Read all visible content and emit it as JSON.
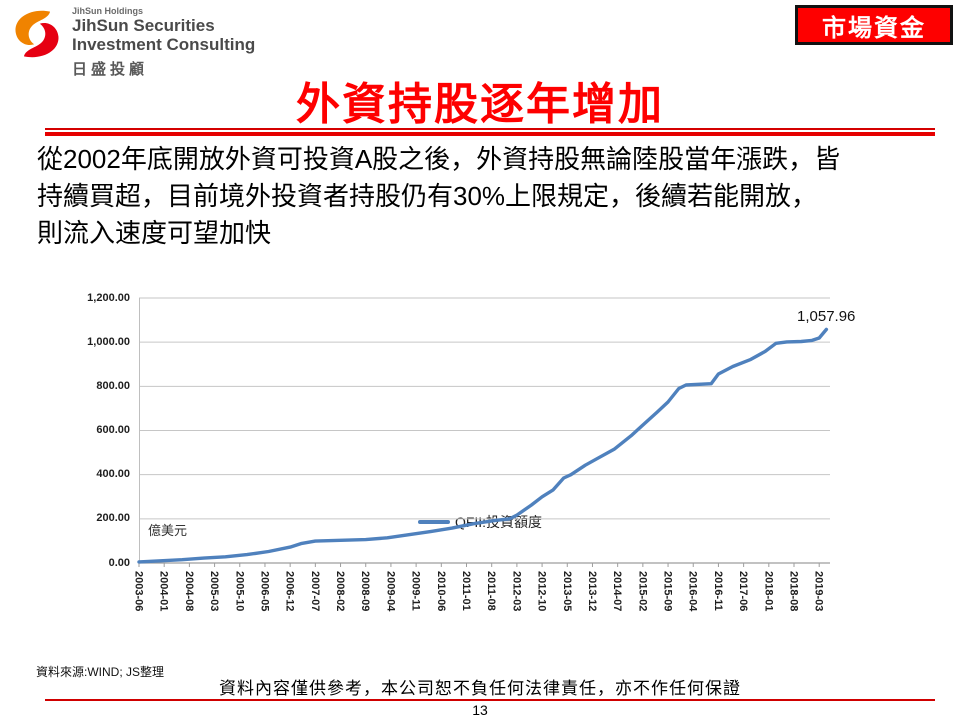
{
  "header": {
    "logo": {
      "holdings": "JihSun Holdings",
      "name_line1": "JihSun Securities",
      "name_line2": "Investment Consulting",
      "name_cjk": "日盛投顧",
      "orange": "#F08300",
      "red": "#E60012"
    },
    "badge": "市場資金"
  },
  "title": "外資持股逐年增加",
  "body": {
    "lines": [
      "從2002年底開放外資可投資A股之後，外資持股無論陸股當年漲跌，皆",
      "持續買超，目前境外投資者持股仍有30%上限規定，後續若能開放，",
      "則流入速度可望加快"
    ]
  },
  "chart_data": {
    "type": "line",
    "unit_label": "億美元",
    "legend": "QFII:投資額度",
    "legend_position": "top",
    "line_color": "#4F81BD",
    "grid": true,
    "ylim": [
      0,
      1200
    ],
    "y_ticks": [
      "0.00",
      "200.00",
      "400.00",
      "600.00",
      "800.00",
      "1,000.00",
      "1,200.00"
    ],
    "x_ticks": [
      "2003-06",
      "2004-01",
      "2004-08",
      "2005-03",
      "2005-10",
      "2006-05",
      "2006-12",
      "2007-07",
      "2008-02",
      "2008-09",
      "2009-04",
      "2009-11",
      "2010-06",
      "2011-01",
      "2011-08",
      "2012-03",
      "2012-10",
      "2013-05",
      "2013-12",
      "2014-07",
      "2015-02",
      "2015-09",
      "2016-04",
      "2016-11",
      "2017-06",
      "2018-01",
      "2018-08",
      "2019-03"
    ],
    "x_axis_start": "2003-06",
    "x_axis_months": 192,
    "end_label": "1,057.96",
    "series": [
      {
        "name": "QFII:投資額度",
        "points": [
          [
            "2003-06",
            5
          ],
          [
            "2003-12",
            10
          ],
          [
            "2004-06",
            15
          ],
          [
            "2004-12",
            22
          ],
          [
            "2005-06",
            28
          ],
          [
            "2005-12",
            38
          ],
          [
            "2006-06",
            52
          ],
          [
            "2006-12",
            72
          ],
          [
            "2007-03",
            88
          ],
          [
            "2007-07",
            99
          ],
          [
            "2008-02",
            103
          ],
          [
            "2008-09",
            106
          ],
          [
            "2009-03",
            114
          ],
          [
            "2009-09",
            128
          ],
          [
            "2010-03",
            142
          ],
          [
            "2010-09",
            158
          ],
          [
            "2011-03",
            178
          ],
          [
            "2011-09",
            193
          ],
          [
            "2012-01",
            200
          ],
          [
            "2012-03",
            217
          ],
          [
            "2012-07",
            262
          ],
          [
            "2012-10",
            300
          ],
          [
            "2013-01",
            330
          ],
          [
            "2013-04",
            385
          ],
          [
            "2013-06",
            400
          ],
          [
            "2013-10",
            443
          ],
          [
            "2014-01",
            470
          ],
          [
            "2014-06",
            515
          ],
          [
            "2014-11",
            580
          ],
          [
            "2015-03",
            640
          ],
          [
            "2015-06",
            684
          ],
          [
            "2015-09",
            729
          ],
          [
            "2015-12",
            790
          ],
          [
            "2016-02",
            806
          ],
          [
            "2016-09",
            812
          ],
          [
            "2016-11",
            856
          ],
          [
            "2017-03",
            890
          ],
          [
            "2017-08",
            922
          ],
          [
            "2017-12",
            958
          ],
          [
            "2018-03",
            995
          ],
          [
            "2018-06",
            1001
          ],
          [
            "2018-10",
            1003
          ],
          [
            "2019-01",
            1008
          ],
          [
            "2019-03",
            1019
          ],
          [
            "2019-05",
            1057.96
          ]
        ]
      }
    ]
  },
  "footer": {
    "source": "資料來源:WIND; JS整理",
    "disclaimer": "資料內容僅供參考，本公司恕不負任何法律責任，亦不作任何保證",
    "page": "13"
  }
}
